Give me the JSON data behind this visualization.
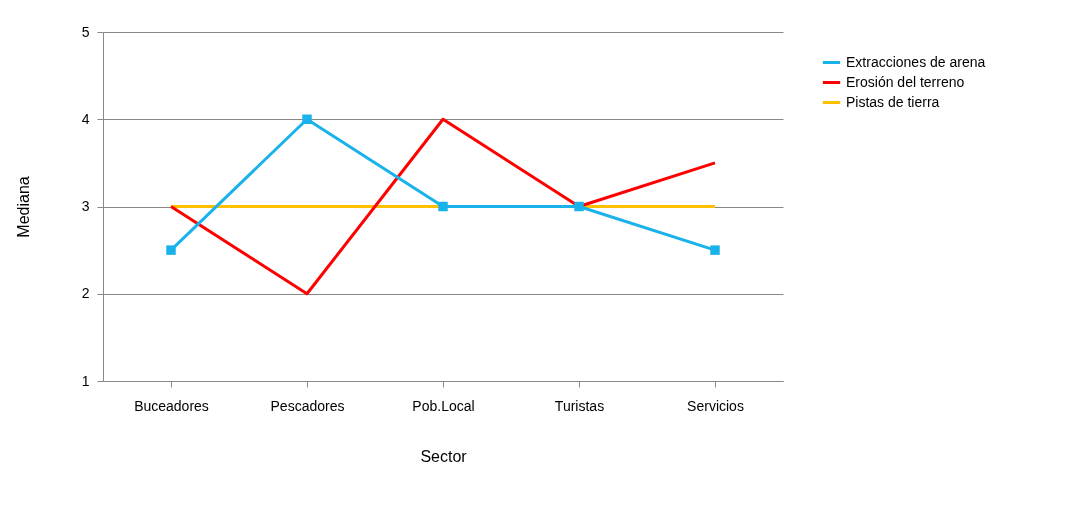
{
  "chart_data": {
    "type": "line",
    "xlabel": "Sector",
    "ylabel": "Mediana",
    "categories": [
      "Buceadores",
      "Pescadores",
      "Pob.Local",
      "Turistas",
      "Servicios"
    ],
    "series": [
      {
        "name": "Extracciones de arena",
        "color": "#1ab2ea",
        "marker": "square",
        "values": [
          2.5,
          4,
          3,
          3,
          2.5
        ]
      },
      {
        "name": "Erosión del terreno",
        "color": "#ff0000",
        "marker": "none",
        "values": [
          3,
          2,
          4,
          3,
          3.5
        ]
      },
      {
        "name": "Pistas de tierra",
        "color": "#ffc000",
        "marker": "none",
        "values": [
          3,
          3,
          3,
          3,
          3
        ]
      }
    ],
    "ylim": [
      1,
      5
    ],
    "yticks": [
      1,
      2,
      3,
      4,
      5
    ],
    "grid": "y",
    "legend": "right",
    "line_style": "solid"
  }
}
